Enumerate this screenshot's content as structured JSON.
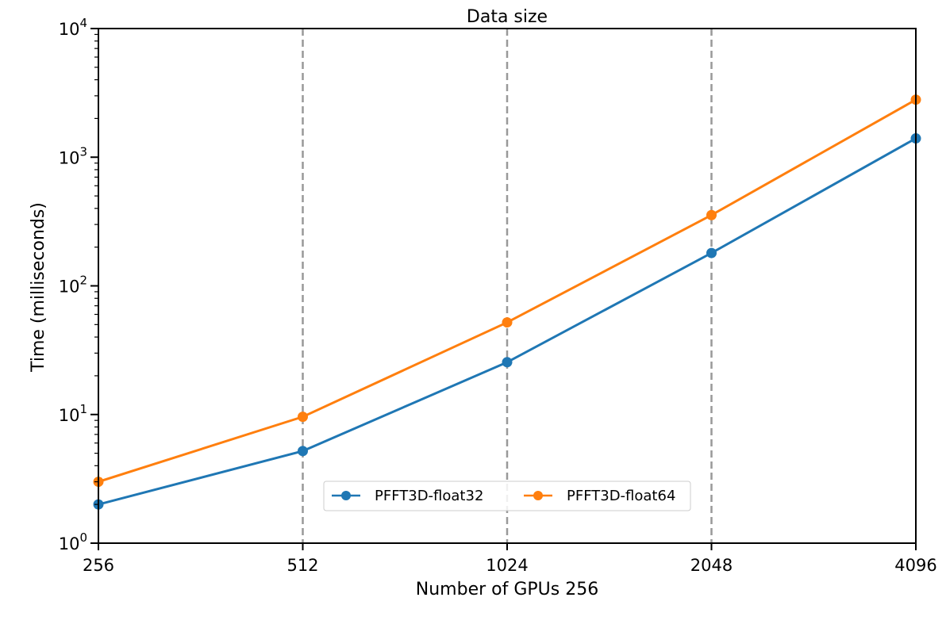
{
  "chart_data": {
    "type": "line",
    "title": "Data size",
    "xlabel": "Number of GPUs 256",
    "ylabel": "Time (milliseconds)",
    "x_scale": "log2",
    "y_scale": "log10",
    "x": [
      256,
      512,
      1024,
      2048,
      4096
    ],
    "x_ticks": [
      "256",
      "512",
      "1024",
      "2048",
      "4096"
    ],
    "y_ticks": [
      1,
      10,
      100,
      1000,
      10000
    ],
    "ylim": [
      1,
      10000
    ],
    "xlim": [
      256,
      4096
    ],
    "vertical_dashed_lines_at": [
      512,
      1024,
      2048
    ],
    "legend_position": "lower-center",
    "series": [
      {
        "name": "PFFT3D-float32",
        "color": "#1f77b4",
        "values": [
          2.0,
          5.2,
          25.5,
          180,
          1400
        ]
      },
      {
        "name": "PFFT3D-float64",
        "color": "#ff7f0e",
        "values": [
          3.0,
          9.6,
          52,
          355,
          2800
        ]
      }
    ]
  }
}
